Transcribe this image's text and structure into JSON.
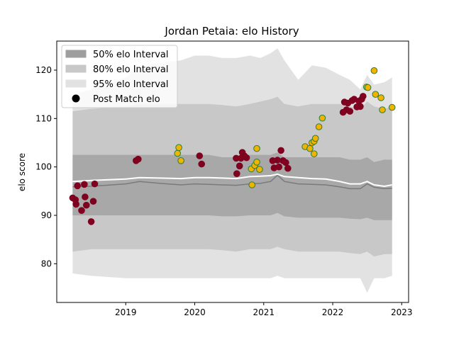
{
  "chart_data": {
    "type": "scatter",
    "title": "Jordan Petaia: elo History",
    "xlabel": "",
    "ylabel": "elo score",
    "xlim": [
      2018.0,
      2023.1
    ],
    "ylim": [
      72,
      126
    ],
    "x_ticks": [
      2019,
      2020,
      2021,
      2022,
      2023
    ],
    "x_tick_labels": [
      "2019",
      "2020",
      "2021",
      "2022",
      "2023"
    ],
    "y_ticks": [
      80,
      90,
      100,
      110,
      120
    ],
    "y_tick_labels": [
      "80",
      "90",
      "100",
      "110",
      "120"
    ],
    "grid": false,
    "legend_position": "top-left",
    "legend": [
      {
        "label": "50% elo Interval",
        "kind": "band50"
      },
      {
        "label": "80% elo Interval",
        "kind": "band80"
      },
      {
        "label": "95% elo Interval",
        "kind": "band95"
      },
      {
        "label": "Post Match elo",
        "kind": "dot"
      }
    ],
    "colors": {
      "band50": "#9e9e9e",
      "band80": "#c8c8c8",
      "band95": "#e2e2e2",
      "median_line": "#7a7a7a",
      "mean_line": "#ffffff",
      "win_dot": "#f0b400",
      "loss_dot": "#800020",
      "win_edge": "#2e7d32"
    },
    "bands": {
      "x": [
        2018.23,
        2018.5,
        2019.0,
        2019.2,
        2019.5,
        2019.8,
        2020.0,
        2020.2,
        2020.4,
        2020.6,
        2020.8,
        2020.95,
        2021.1,
        2021.2,
        2021.3,
        2021.5,
        2021.7,
        2021.9,
        2022.1,
        2022.25,
        2022.4,
        2022.5,
        2022.6,
        2022.75,
        2022.86
      ],
      "p95_upper": [
        115.0,
        116.0,
        118.5,
        120.5,
        121.5,
        122.0,
        123.0,
        123.0,
        122.5,
        122.5,
        123.0,
        122.5,
        123.5,
        124.5,
        122.0,
        118.0,
        121.0,
        120.5,
        119.0,
        118.0,
        116.0,
        119.0,
        117.0,
        117.5,
        118.5
      ],
      "p80_upper": [
        111.5,
        112.0,
        112.5,
        113.0,
        113.0,
        113.0,
        113.0,
        113.0,
        112.8,
        112.5,
        113.0,
        113.5,
        114.0,
        114.5,
        113.0,
        112.5,
        113.0,
        113.0,
        113.0,
        112.5,
        112.0,
        113.5,
        112.5,
        112.0,
        112.5
      ],
      "p50_upper": [
        102.5,
        102.5,
        102.5,
        102.5,
        102.5,
        102.5,
        102.5,
        102.5,
        102.0,
        102.0,
        102.5,
        102.5,
        102.5,
        103.0,
        102.0,
        102.0,
        102.0,
        102.0,
        102.0,
        101.5,
        101.5,
        102.0,
        101.0,
        101.5,
        101.5
      ],
      "median": [
        95.9,
        96.0,
        96.5,
        97.0,
        96.6,
        96.3,
        96.5,
        96.4,
        96.3,
        96.2,
        96.5,
        96.6,
        97.0,
        98.3,
        97.0,
        96.5,
        96.4,
        96.3,
        95.9,
        95.5,
        95.5,
        96.5,
        95.8,
        95.5,
        95.6
      ],
      "mean": [
        97.0,
        97.2,
        97.5,
        97.8,
        97.7,
        97.6,
        97.8,
        97.8,
        97.7,
        97.6,
        98.0,
        98.1,
        98.2,
        98.5,
        98.0,
        97.8,
        97.6,
        97.5,
        97.0,
        96.5,
        96.5,
        97.0,
        96.3,
        96.0,
        96.3
      ],
      "p50_lower": [
        90.0,
        90.0,
        90.0,
        90.0,
        90.0,
        90.0,
        90.0,
        90.0,
        89.8,
        89.8,
        90.0,
        90.0,
        90.0,
        90.5,
        89.8,
        89.5,
        89.5,
        89.5,
        89.5,
        89.3,
        89.2,
        89.5,
        89.0,
        89.0,
        89.0
      ],
      "p80_lower": [
        82.5,
        83.0,
        83.0,
        83.0,
        83.0,
        83.0,
        83.0,
        83.0,
        82.8,
        82.5,
        83.0,
        83.0,
        83.0,
        83.5,
        83.0,
        82.5,
        82.5,
        82.5,
        82.5,
        82.2,
        82.0,
        82.5,
        81.5,
        82.0,
        82.0
      ],
      "p95_lower": [
        78.0,
        77.5,
        77.0,
        77.0,
        77.0,
        77.0,
        77.0,
        77.0,
        77.0,
        77.0,
        77.0,
        77.0,
        77.0,
        77.5,
        77.0,
        77.0,
        77.0,
        77.0,
        77.0,
        77.0,
        77.0,
        74.0,
        77.0,
        77.0,
        77.5
      ]
    },
    "series": [
      {
        "result": "win",
        "points": [
          {
            "x": 2019.75,
            "y": 102.8
          },
          {
            "x": 2019.77,
            "y": 104.0
          },
          {
            "x": 2019.8,
            "y": 101.3
          },
          {
            "x": 2020.83,
            "y": 96.3
          },
          {
            "x": 2020.82,
            "y": 99.6
          },
          {
            "x": 2020.87,
            "y": 100.3
          },
          {
            "x": 2020.9,
            "y": 101.0
          },
          {
            "x": 2020.9,
            "y": 103.8
          },
          {
            "x": 2020.94,
            "y": 99.5
          },
          {
            "x": 2021.6,
            "y": 104.2
          },
          {
            "x": 2021.67,
            "y": 103.8
          },
          {
            "x": 2021.7,
            "y": 105.0
          },
          {
            "x": 2021.73,
            "y": 105.3
          },
          {
            "x": 2021.73,
            "y": 102.7
          },
          {
            "x": 2021.75,
            "y": 105.9
          },
          {
            "x": 2021.8,
            "y": 108.3
          },
          {
            "x": 2021.85,
            "y": 110.1
          },
          {
            "x": 2022.49,
            "y": 116.5
          },
          {
            "x": 2022.51,
            "y": 116.4
          },
          {
            "x": 2022.6,
            "y": 119.9
          },
          {
            "x": 2022.62,
            "y": 115.0
          },
          {
            "x": 2022.7,
            "y": 114.3
          },
          {
            "x": 2022.72,
            "y": 111.8
          },
          {
            "x": 2022.86,
            "y": 112.3
          }
        ]
      },
      {
        "result": "loss",
        "points": [
          {
            "x": 2018.23,
            "y": 93.6
          },
          {
            "x": 2018.27,
            "y": 93.2
          },
          {
            "x": 2018.28,
            "y": 92.3
          },
          {
            "x": 2018.3,
            "y": 96.1
          },
          {
            "x": 2018.36,
            "y": 91.0
          },
          {
            "x": 2018.4,
            "y": 96.4
          },
          {
            "x": 2018.41,
            "y": 93.8
          },
          {
            "x": 2018.43,
            "y": 92.1
          },
          {
            "x": 2018.5,
            "y": 88.7
          },
          {
            "x": 2018.53,
            "y": 92.9
          },
          {
            "x": 2018.55,
            "y": 96.5
          },
          {
            "x": 2019.15,
            "y": 101.3
          },
          {
            "x": 2019.18,
            "y": 101.6
          },
          {
            "x": 2020.07,
            "y": 102.3
          },
          {
            "x": 2020.1,
            "y": 100.6
          },
          {
            "x": 2020.6,
            "y": 101.8
          },
          {
            "x": 2020.61,
            "y": 98.6
          },
          {
            "x": 2020.65,
            "y": 100.2
          },
          {
            "x": 2020.67,
            "y": 101.8
          },
          {
            "x": 2020.69,
            "y": 103.0
          },
          {
            "x": 2020.72,
            "y": 102.3
          },
          {
            "x": 2020.75,
            "y": 101.9
          },
          {
            "x": 2021.13,
            "y": 101.3
          },
          {
            "x": 2021.15,
            "y": 99.8
          },
          {
            "x": 2021.2,
            "y": 101.4
          },
          {
            "x": 2021.22,
            "y": 100.0
          },
          {
            "x": 2021.25,
            "y": 103.4
          },
          {
            "x": 2021.28,
            "y": 101.3
          },
          {
            "x": 2021.32,
            "y": 100.9
          },
          {
            "x": 2021.35,
            "y": 99.7
          },
          {
            "x": 2022.15,
            "y": 111.3
          },
          {
            "x": 2022.17,
            "y": 113.4
          },
          {
            "x": 2022.2,
            "y": 111.8
          },
          {
            "x": 2022.22,
            "y": 113.2
          },
          {
            "x": 2022.25,
            "y": 111.5
          },
          {
            "x": 2022.28,
            "y": 113.7
          },
          {
            "x": 2022.31,
            "y": 114.0
          },
          {
            "x": 2022.35,
            "y": 112.4
          },
          {
            "x": 2022.38,
            "y": 113.6
          },
          {
            "x": 2022.4,
            "y": 112.5
          },
          {
            "x": 2022.42,
            "y": 114.0
          },
          {
            "x": 2022.44,
            "y": 114.6
          }
        ]
      }
    ]
  }
}
